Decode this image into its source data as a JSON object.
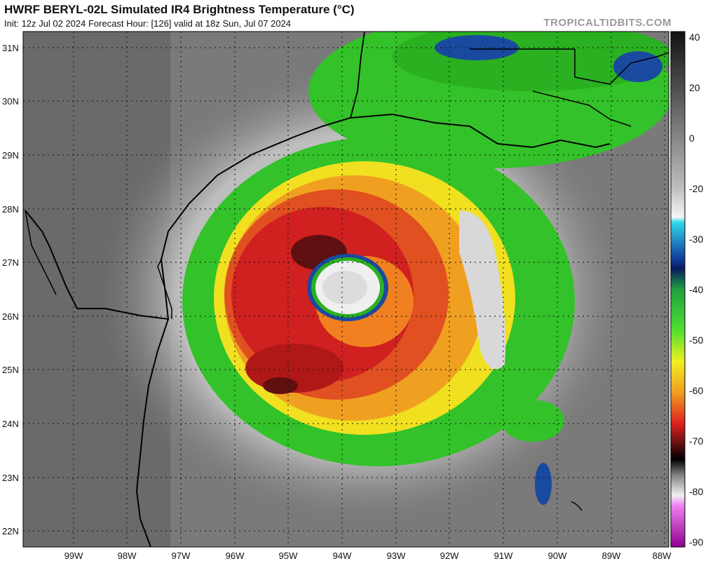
{
  "header": {
    "title": "HWRF BERYL-02L Simulated IR4 Brightness Temperature (°C)",
    "subtitle": "Init: 12z Jul 02 2024   Forecast Hour: [126]   valid at 18z Sun, Jul 07 2024",
    "credit": "TROPICALTIDBITS.COM"
  },
  "axes": {
    "latitudes": [
      "31N",
      "30N",
      "29N",
      "28N",
      "27N",
      "26N",
      "25N",
      "24N",
      "23N",
      "22N"
    ],
    "longitudes": [
      "99W",
      "98W",
      "97W",
      "96W",
      "95W",
      "94W",
      "93W",
      "92W",
      "91W",
      "90W",
      "89W",
      "88W"
    ]
  },
  "colorbar": {
    "ticks": [
      "40",
      "20",
      "0",
      "-20",
      "-30",
      "-40",
      "-50",
      "-60",
      "-70",
      "-80",
      "-90"
    ],
    "unit": "°C"
  },
  "colors": {
    "clear_sky": "#7a7a7a",
    "cloud_high": "#e8e8e8",
    "deep_green": "#33c229",
    "yellow": "#f0e020",
    "orange": "#f08020",
    "red": "#d02020",
    "dark_red": "#601010",
    "eye_white": "#efefef",
    "coast": "#000000"
  }
}
